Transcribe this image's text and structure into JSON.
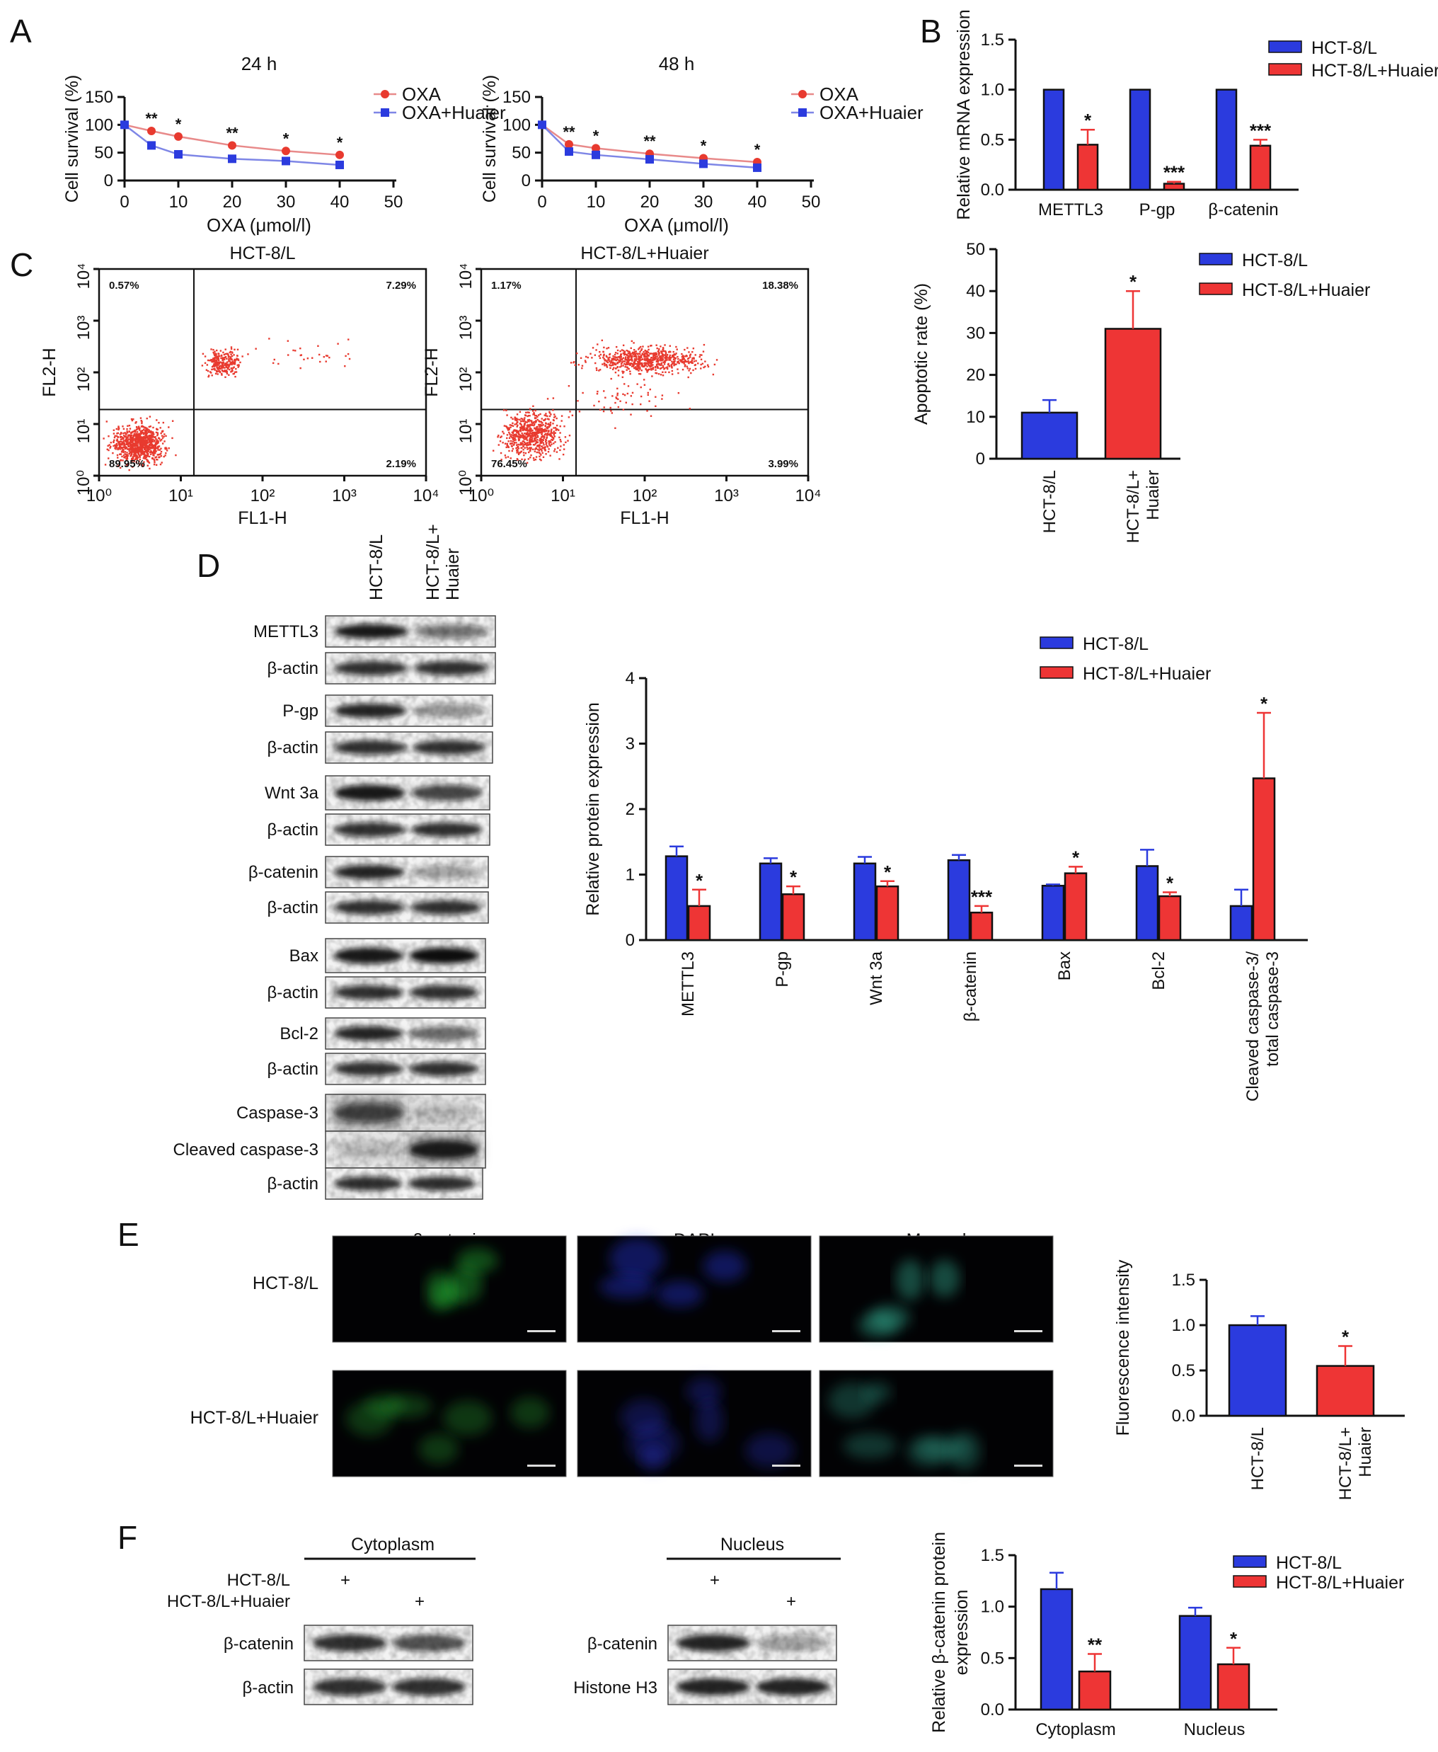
{
  "panels": {
    "A": "A",
    "B": "B",
    "C": "C",
    "D": "D",
    "E": "E",
    "F": "F"
  },
  "colors": {
    "blue": "#2b3bde",
    "red": "#ee3535",
    "dot": "#e83a2f",
    "line_oxa": "#e88a8a",
    "line_huaier": "#7e86e6"
  },
  "chart_data": [
    {
      "id": "A1",
      "type": "line",
      "title": "24 h",
      "xlabel": "OXA (μmol/l)",
      "ylabel": "Cell survival (%)",
      "xlim": [
        0,
        50
      ],
      "ylim": [
        0,
        150
      ],
      "xticks": [
        "0",
        "10",
        "20",
        "30",
        "40",
        "50"
      ],
      "yticks": [
        "0",
        "50",
        "100",
        "150"
      ],
      "x": [
        0,
        5,
        10,
        20,
        30,
        40
      ],
      "series": [
        {
          "name": "OXA",
          "values": [
            100,
            89,
            79,
            63,
            53,
            46
          ]
        },
        {
          "name": "OXA+Huaier",
          "values": [
            100,
            63,
            47,
            39,
            35,
            28
          ]
        }
      ],
      "annotations": [
        "**",
        "*",
        "**",
        "*",
        "*"
      ]
    },
    {
      "id": "A2",
      "type": "line",
      "title": "48 h",
      "xlabel": "OXA (μmol/l)",
      "ylabel": "Cell survival (%)",
      "xlim": [
        0,
        50
      ],
      "ylim": [
        0,
        150
      ],
      "xticks": [
        "0",
        "10",
        "20",
        "30",
        "40",
        "50"
      ],
      "yticks": [
        "0",
        "50",
        "100",
        "150"
      ],
      "x": [
        0,
        5,
        10,
        20,
        30,
        40
      ],
      "series": [
        {
          "name": "OXA",
          "values": [
            100,
            65,
            58,
            48,
            40,
            33
          ]
        },
        {
          "name": "OXA+Huaier",
          "values": [
            100,
            52,
            46,
            38,
            30,
            23
          ]
        }
      ],
      "annotations": [
        "**",
        "*",
        "**",
        "*",
        "*"
      ]
    },
    {
      "id": "B1",
      "type": "bar",
      "ylabel": "Relative mRNA expression",
      "ylim": [
        0,
        1.5
      ],
      "yticks": [
        "0.0",
        "0.5",
        "1.0",
        "1.5"
      ],
      "categories": [
        "METTL3",
        "P-gp",
        "β-catenin"
      ],
      "series": [
        {
          "name": "HCT-8/L",
          "values": [
            1.0,
            1.0,
            1.0
          ]
        },
        {
          "name": "HCT-8/L+Huaier",
          "values": [
            0.45,
            0.06,
            0.44
          ]
        }
      ],
      "errors": [
        [
          0,
          0,
          0
        ],
        [
          0.15,
          0.02,
          0.06
        ]
      ],
      "annotations": [
        "*",
        "***",
        "***"
      ]
    },
    {
      "id": "B2",
      "type": "bar",
      "ylabel": "Apoptotic rate (%)",
      "ylim": [
        0,
        50
      ],
      "yticks": [
        "0",
        "10",
        "20",
        "30",
        "40",
        "50"
      ],
      "categories": [
        "HCT-8/L",
        "HCT-8/L+ Huaier"
      ],
      "series": [
        {
          "name": "HCT-8/L",
          "values": [
            11,
            null
          ]
        },
        {
          "name": "HCT-8/L+Huaier",
          "values": [
            null,
            31
          ]
        }
      ],
      "errors": [
        3,
        9
      ],
      "annotations": [
        "",
        "*"
      ]
    },
    {
      "id": "C1",
      "type": "scatter",
      "title": "HCT-8/L",
      "xlabel": "FL1-H",
      "ylabel": "FL2-H",
      "axis_scale": "log",
      "xticks": [
        "10⁰",
        "10¹",
        "10²",
        "10³",
        "10⁴"
      ],
      "yticks": [
        "10⁰",
        "10¹",
        "10²",
        "10³",
        "10⁴"
      ],
      "quadrants": {
        "UL": "0.57%",
        "UR": "7.29%",
        "LL": "89.95%",
        "LR": "2.19%"
      }
    },
    {
      "id": "C2",
      "type": "scatter",
      "title": "HCT-8/L+Huaier",
      "xlabel": "FL1-H",
      "ylabel": "FL2-H",
      "axis_scale": "log",
      "xticks": [
        "10⁰",
        "10¹",
        "10²",
        "10³",
        "10⁴"
      ],
      "yticks": [
        "10⁰",
        "10¹",
        "10²",
        "10³",
        "10⁴"
      ],
      "quadrants": {
        "UL": "1.17%",
        "UR": "18.38%",
        "LL": "76.45%",
        "LR": "3.99%"
      }
    },
    {
      "id": "D",
      "type": "bar",
      "ylabel": "Relative protein expression",
      "ylim": [
        0,
        4
      ],
      "yticks": [
        "0",
        "1",
        "2",
        "3",
        "4"
      ],
      "categories": [
        "METTL3",
        "P-gp",
        "Wnt 3a",
        "β-catenin",
        "Bax",
        "Bcl-2",
        "Cleaved caspase-3/ total caspase-3"
      ],
      "series": [
        {
          "name": "HCT-8/L",
          "values": [
            1.28,
            1.17,
            1.17,
            1.22,
            0.83,
            1.13,
            0.52
          ]
        },
        {
          "name": "HCT-8/L+Huaier",
          "values": [
            0.52,
            0.7,
            0.82,
            0.42,
            1.02,
            0.67,
            2.47
          ]
        }
      ],
      "errors": [
        [
          0.15,
          0.08,
          0.1,
          0.08,
          0.02,
          0.25,
          0.25
        ],
        [
          0.25,
          0.12,
          0.08,
          0.1,
          0.1,
          0.06,
          1.0
        ]
      ],
      "annotations": [
        "*",
        "*",
        "*",
        "***",
        "*",
        "*",
        "*"
      ]
    },
    {
      "id": "E",
      "type": "bar",
      "ylabel": "Fluorescence intensity",
      "ylim": [
        0,
        1.5
      ],
      "yticks": [
        "0.0",
        "0.5",
        "1.0",
        "1.5"
      ],
      "categories": [
        "HCT-8/L",
        "HCT-8/L+ Huaier"
      ],
      "series": [
        {
          "name": "HCT-8/L",
          "values": [
            1.0,
            null
          ]
        },
        {
          "name": "HCT-8/L+Huaier",
          "values": [
            null,
            0.55
          ]
        }
      ],
      "errors": [
        0.1,
        0.22
      ],
      "annotations": [
        "",
        "*"
      ]
    },
    {
      "id": "F",
      "type": "bar",
      "ylabel": "Relative β-catenin protein expression",
      "ylim": [
        0,
        1.5
      ],
      "yticks": [
        "0.0",
        "0.5",
        "1.0",
        "1.5"
      ],
      "categories": [
        "Cytoplasm",
        "Nucleus"
      ],
      "series": [
        {
          "name": "HCT-8/L",
          "values": [
            1.17,
            0.91
          ]
        },
        {
          "name": "HCT-8/L+Huaier",
          "values": [
            0.37,
            0.44
          ]
        }
      ],
      "errors": [
        [
          0.16,
          0.08
        ],
        [
          0.17,
          0.16
        ]
      ],
      "annotations": [
        "**",
        "*"
      ]
    }
  ],
  "blots_D": {
    "col_labels": [
      "HCT-8/L",
      "HCT-8/L+ Huaier"
    ],
    "rows": [
      "METTL3",
      "β-actin",
      "P-gp",
      "β-actin",
      "Wnt 3a",
      "β-actin",
      "β-catenin",
      "β-actin",
      "Bax",
      "β-actin",
      "Bcl-2",
      "β-actin",
      "Caspase-3",
      "Cleaved caspase-3",
      "β-actin"
    ]
  },
  "panelE_images": {
    "col_titles": [
      "β-catenin",
      "DAPI",
      "Merged"
    ],
    "row_labels": [
      "HCT-8/L",
      "HCT-8/L+Huaier"
    ]
  },
  "panelF_blots": {
    "sections": [
      "Cytoplasm",
      "Nucleus"
    ],
    "conditions": [
      "HCT-8/L",
      "HCT-8/L+Huaier"
    ],
    "plus": "+",
    "cyt_rows": [
      "β-catenin",
      "β-actin"
    ],
    "nuc_rows": [
      "β-catenin",
      "Histone H3"
    ]
  }
}
